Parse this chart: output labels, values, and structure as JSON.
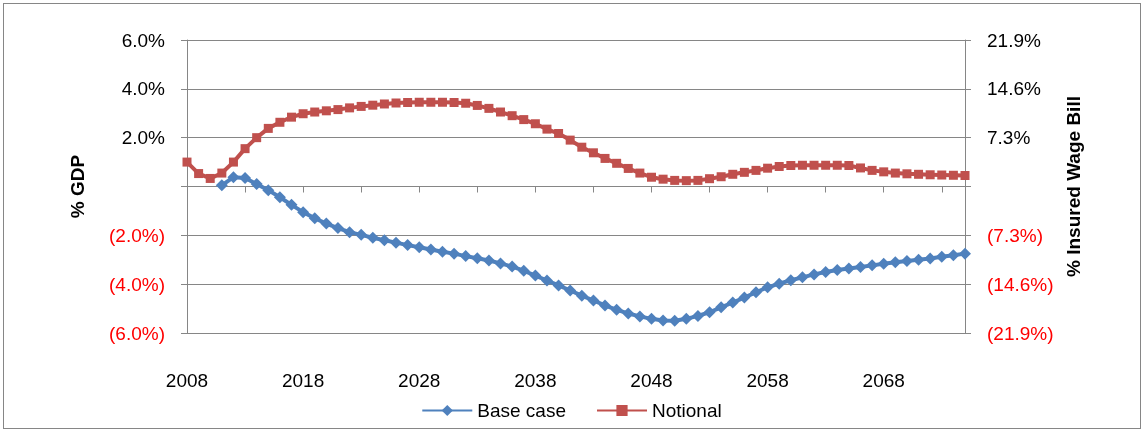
{
  "chart_data": {
    "type": "line",
    "ylabel": "% GDP",
    "y2label": "% Insured Wage Bill",
    "categories": [
      "2008",
      null,
      null,
      null,
      null,
      null,
      null,
      null,
      null,
      null,
      "2018",
      null,
      null,
      null,
      null,
      null,
      null,
      null,
      null,
      null,
      "2028",
      null,
      null,
      null,
      null,
      null,
      null,
      null,
      null,
      null,
      "2038",
      null,
      null,
      null,
      null,
      null,
      null,
      null,
      null,
      null,
      "2048",
      null,
      null,
      null,
      null,
      null,
      null,
      null,
      null,
      null,
      "2058",
      null,
      null,
      null,
      null,
      null,
      null,
      null,
      null,
      null,
      "2068",
      null,
      null,
      null,
      null,
      null,
      null,
      null
    ],
    "series": [
      {
        "name": "Base case",
        "color": "#4f81bd",
        "marker": "diamond",
        "values": [
          null,
          null,
          null,
          0.05,
          0.38,
          0.35,
          0.1,
          -0.15,
          -0.44,
          -0.75,
          -1.05,
          -1.3,
          -1.52,
          -1.7,
          -1.87,
          -1.98,
          -2.1,
          -2.2,
          -2.3,
          -2.4,
          -2.49,
          -2.58,
          -2.67,
          -2.75,
          -2.85,
          -2.94,
          -3.03,
          -3.15,
          -3.28,
          -3.45,
          -3.65,
          -3.85,
          -4.05,
          -4.26,
          -4.47,
          -4.67,
          -4.87,
          -5.05,
          -5.2,
          -5.32,
          -5.42,
          -5.49,
          -5.5,
          -5.42,
          -5.3,
          -5.15,
          -4.95,
          -4.75,
          -4.55,
          -4.33,
          -4.13,
          -3.98,
          -3.84,
          -3.72,
          -3.6,
          -3.5,
          -3.42,
          -3.36,
          -3.3,
          -3.23,
          -3.16,
          -3.1,
          -3.05,
          -3.0,
          -2.95,
          -2.88,
          -2.82,
          -2.75
        ]
      },
      {
        "name": "Notional",
        "color": "#c0504d",
        "marker": "square",
        "values": [
          1.0,
          0.53,
          0.33,
          0.55,
          1.0,
          1.55,
          2.0,
          2.38,
          2.63,
          2.84,
          2.98,
          3.05,
          3.1,
          3.15,
          3.22,
          3.28,
          3.33,
          3.38,
          3.42,
          3.44,
          3.45,
          3.45,
          3.45,
          3.44,
          3.41,
          3.32,
          3.2,
          3.05,
          2.9,
          2.74,
          2.57,
          2.35,
          2.17,
          1.9,
          1.61,
          1.38,
          1.15,
          0.95,
          0.74,
          0.55,
          0.38,
          0.3,
          0.25,
          0.24,
          0.25,
          0.32,
          0.4,
          0.5,
          0.58,
          0.66,
          0.75,
          0.82,
          0.86,
          0.87,
          0.87,
          0.87,
          0.87,
          0.86,
          0.76,
          0.66,
          0.6,
          0.55,
          0.52,
          0.5,
          0.48,
          0.47,
          0.46,
          0.45
        ]
      }
    ],
    "ylim": [
      -6,
      6
    ],
    "yticks": [
      {
        "value": -6,
        "label": "(6.0%)"
      },
      {
        "value": -4,
        "label": "(4.0%)"
      },
      {
        "value": -2,
        "label": "(2.0%)"
      },
      {
        "value": 0,
        "label": null
      },
      {
        "value": 2,
        "label": "2.0%"
      },
      {
        "value": 4,
        "label": "4.0%"
      },
      {
        "value": 6,
        "label": "6.0%"
      }
    ],
    "y2lim": [
      -21.9,
      21.9
    ],
    "y2ticks": [
      {
        "value": -21.9,
        "label": "(21.9%)"
      },
      {
        "value": -14.6,
        "label": "(14.6%)"
      },
      {
        "value": -7.3,
        "label": "(7.3%)"
      },
      {
        "value": 0,
        "label": null
      },
      {
        "value": 7.3,
        "label": "7.3%"
      },
      {
        "value": 14.6,
        "label": "14.6%"
      },
      {
        "value": 21.9,
        "label": "21.9%"
      }
    ],
    "grid": "y",
    "legend": "bottom"
  }
}
